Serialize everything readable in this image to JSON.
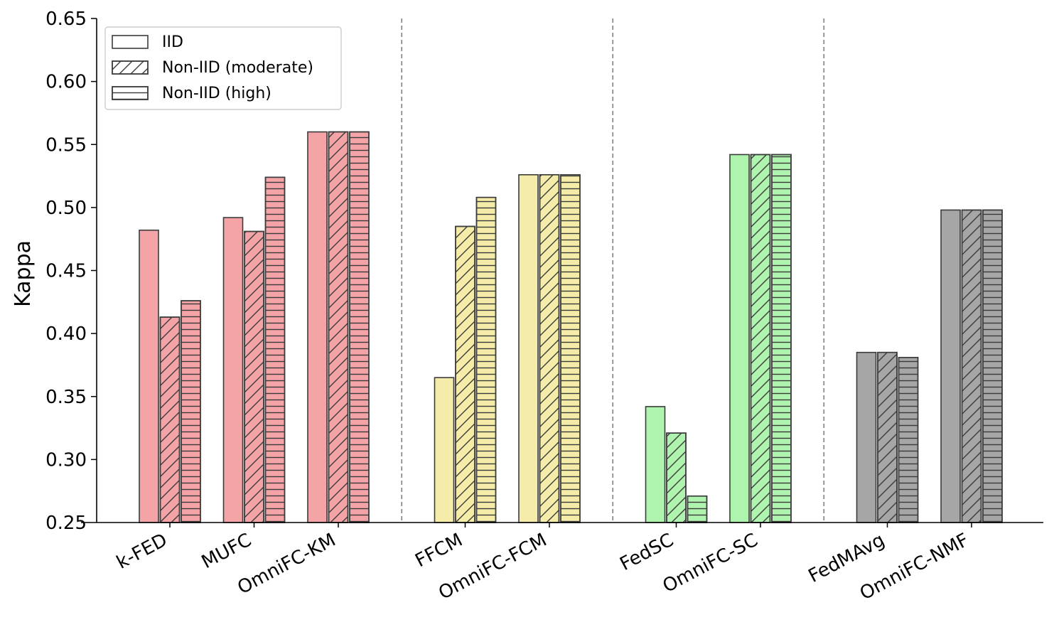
{
  "chart_data": {
    "type": "bar",
    "title": "",
    "xlabel": "",
    "ylabel": "Kappa",
    "ylim": [
      0.25,
      0.65
    ],
    "yticks": [
      "0.25",
      "0.30",
      "0.35",
      "0.40",
      "0.45",
      "0.50",
      "0.55",
      "0.60",
      "0.65"
    ],
    "grid": false,
    "legend_position": "top-left",
    "series": [
      {
        "name": "IID",
        "pattern": "none"
      },
      {
        "name": "Non-IID (moderate)",
        "pattern": "diagonal"
      },
      {
        "name": "Non-IID (high)",
        "pattern": "horizontal"
      }
    ],
    "groups": [
      {
        "color": "#f4a4a6",
        "methods": [
          {
            "name": "k-FED",
            "values": [
              0.482,
              0.413,
              0.426
            ]
          },
          {
            "name": "MUFC",
            "values": [
              0.492,
              0.481,
              0.524
            ]
          },
          {
            "name": "OmniFC-KM",
            "values": [
              0.56,
              0.56,
              0.56
            ]
          }
        ]
      },
      {
        "color": "#f4eca8",
        "methods": [
          {
            "name": "FFCM",
            "values": [
              0.365,
              0.485,
              0.508
            ]
          },
          {
            "name": "OmniFC-FCM",
            "values": [
              0.526,
              0.526,
              0.526
            ]
          }
        ]
      },
      {
        "color": "#aef4ae",
        "methods": [
          {
            "name": "FedSC",
            "values": [
              0.342,
              0.321,
              0.271
            ]
          },
          {
            "name": "OmniFC-SC",
            "values": [
              0.542,
              0.542,
              0.542
            ]
          }
        ]
      },
      {
        "color": "#a6a6a6",
        "methods": [
          {
            "name": "FedMAvg",
            "values": [
              0.385,
              0.385,
              0.381
            ]
          },
          {
            "name": "OmniFC-NMF",
            "values": [
              0.498,
              0.498,
              0.498
            ]
          }
        ]
      }
    ]
  }
}
